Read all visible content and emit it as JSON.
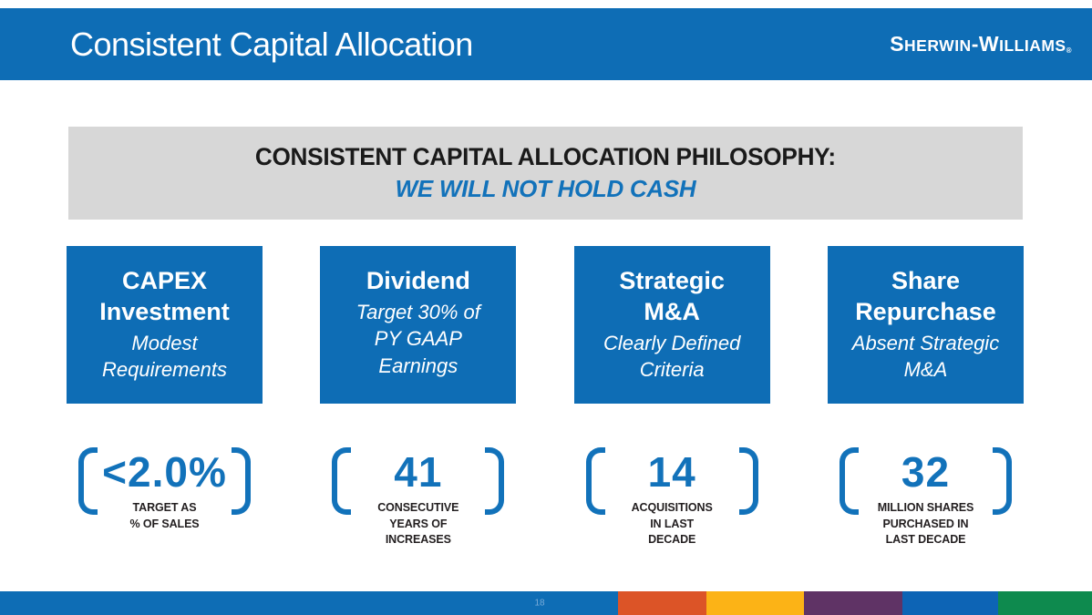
{
  "header": {
    "title": "Consistent Capital Allocation",
    "logo": {
      "first_cap": "S",
      "first_rest": "HERWIN",
      "separator": "-",
      "second_cap": "W",
      "second_rest": "ILLIAMS",
      "reg_mark": "®"
    },
    "bar_color": "#0E6DB5"
  },
  "banner": {
    "heading": "CONSISTENT CAPITAL ALLOCATION PHILOSOPHY:",
    "subheading": "WE WILL NOT HOLD CASH",
    "background_color": "#D7D7D7",
    "subheading_color": "#1272BA"
  },
  "pillars": [
    {
      "title": [
        "CAPEX",
        "Investment"
      ],
      "subtitle": [
        "Modest",
        "Requirements"
      ]
    },
    {
      "title": [
        "Dividend"
      ],
      "subtitle": [
        "Target 30% of",
        "PY GAAP",
        "Earnings"
      ]
    },
    {
      "title": [
        "Strategic",
        "M&A"
      ],
      "subtitle": [
        "Clearly Defined",
        "Criteria"
      ]
    },
    {
      "title": [
        "Share",
        "Repurchase"
      ],
      "subtitle": [
        "Absent Strategic",
        "M&A"
      ]
    }
  ],
  "stats": [
    {
      "value": "<2.0%",
      "caption": [
        "TARGET AS",
        "% OF SALES"
      ]
    },
    {
      "value": "41",
      "caption": [
        "CONSECUTIVE",
        "YEARS OF",
        "INCREASES"
      ]
    },
    {
      "value": "14",
      "caption": [
        "ACQUISITIONS",
        "IN LAST",
        "DECADE"
      ]
    },
    {
      "value": "32",
      "caption": [
        "MILLION SHARES",
        "PURCHASED IN",
        "LAST DECADE"
      ]
    }
  ],
  "accent_blue": "#1272BA",
  "footer": {
    "page_number": "18",
    "main_color": "#0E6DB5",
    "segment_colors": [
      "#DC5427",
      "#FCB316",
      "#5F3365",
      "#0D64B5",
      "#0E8A4E"
    ]
  }
}
